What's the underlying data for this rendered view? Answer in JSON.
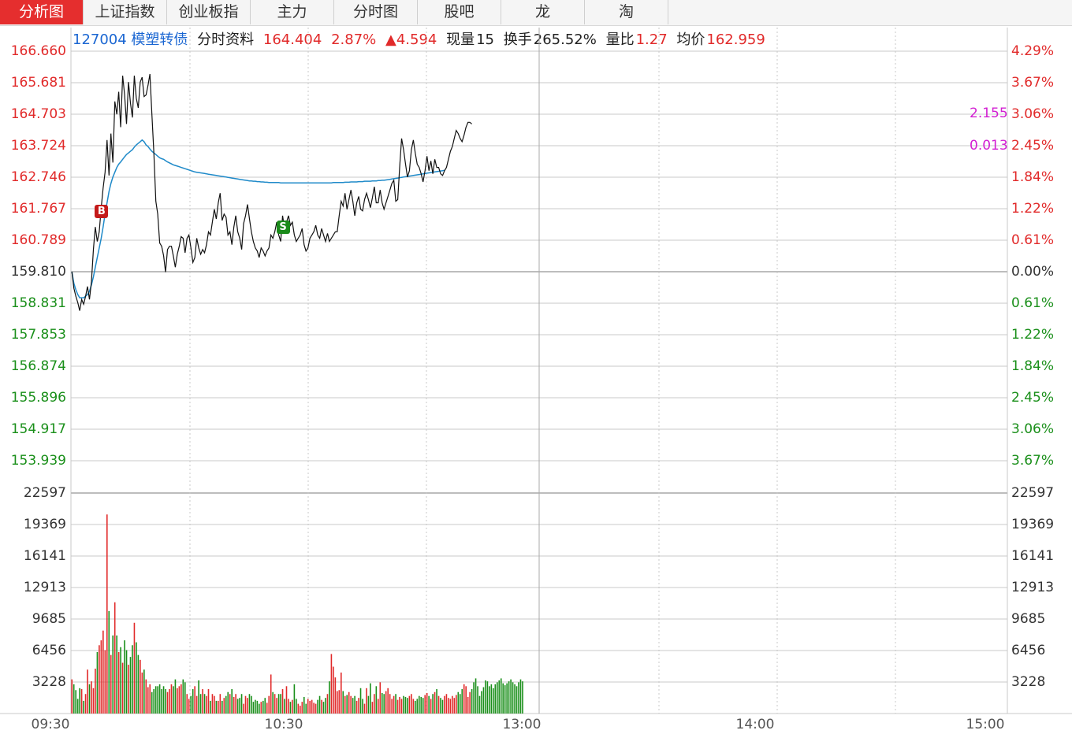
{
  "tabs": [
    {
      "label": "分析图",
      "active": true
    },
    {
      "label": "上证指数"
    },
    {
      "label": "创业板指"
    },
    {
      "label": "主力"
    },
    {
      "label": "分时图"
    },
    {
      "label": "股吧"
    },
    {
      "label": "龙"
    },
    {
      "label": "淘"
    }
  ],
  "info": {
    "code_name": "127004 模塑转债",
    "section": "分时资料",
    "price": "164.404",
    "change_pct": "2.87%",
    "change_amt": "▲4.594",
    "volume_label": "现量",
    "volume": "15",
    "turnover_label": "换手",
    "turnover": "265.52%",
    "ratio_label": "量比",
    "ratio": "1.27",
    "avg_label": "均价",
    "avg": "162.959"
  },
  "overlay_labels": [
    "2.155",
    "0.013"
  ],
  "colors": {
    "price_line": "#111111",
    "avg_line": "#1f8ac9",
    "up": "#e12a2a",
    "down": "#1a8f1a",
    "grid": "#c8c8c8",
    "base": "#bdbdbd",
    "overlay": "#d21fd2"
  },
  "chart_data": {
    "type": "line",
    "price_axis": {
      "labels": [
        "166.660",
        "165.681",
        "164.703",
        "163.724",
        "162.746",
        "161.767",
        "160.789",
        "159.810",
        "158.831",
        "157.853",
        "156.874",
        "155.896",
        "154.917",
        "153.939"
      ],
      "pct_labels": [
        "4.29%",
        "3.67%",
        "3.06%",
        "2.45%",
        "1.84%",
        "1.22%",
        "0.61%",
        "0.00%",
        "0.61%",
        "1.22%",
        "1.84%",
        "2.45%",
        "3.06%",
        "3.67%"
      ],
      "ylim": [
        153.939,
        166.66
      ],
      "prev_close": 159.81
    },
    "volume_axis": {
      "labels": [
        "22597",
        "19369",
        "16141",
        "12913",
        "9685",
        "6456",
        "3228"
      ],
      "ylim": [
        0,
        22597
      ]
    },
    "x_labels": [
      "09:30",
      "10:30",
      "13:00",
      "14:00",
      "15:00"
    ],
    "total_minutes": 240,
    "price": [
      159.81,
      159.3,
      159.05,
      158.85,
      158.6,
      158.95,
      158.8,
      159.05,
      159.35,
      158.95,
      159.5,
      160.5,
      161.2,
      160.75,
      161.05,
      161.8,
      162.4,
      162.9,
      163.9,
      162.8,
      164.1,
      163.2,
      165.1,
      164.7,
      165.4,
      164.3,
      165.9,
      165.3,
      164.4,
      165.7,
      165.05,
      164.6,
      165.9,
      165.2,
      164.9,
      165.7,
      165.85,
      165.25,
      165.3,
      165.6,
      165.95,
      164.7,
      163.5,
      162.0,
      161.6,
      160.7,
      160.6,
      160.3,
      159.8,
      160.5,
      160.6,
      160.6,
      160.3,
      159.95,
      160.35,
      160.6,
      160.9,
      160.85,
      160.4,
      160.85,
      160.95,
      160.55,
      160.1,
      160.25,
      160.85,
      160.55,
      160.35,
      160.5,
      160.4,
      160.65,
      161.05,
      160.95,
      161.35,
      161.75,
      161.45,
      161.95,
      162.25,
      161.4,
      161.6,
      161.5,
      160.95,
      161.05,
      160.65,
      161.2,
      161.55,
      161.05,
      160.85,
      160.5,
      161.3,
      161.55,
      161.9,
      161.45,
      161.05,
      160.75,
      160.55,
      160.45,
      160.25,
      160.55,
      160.45,
      160.3,
      160.45,
      160.55,
      160.95,
      160.85,
      161.05,
      161.35,
      160.95,
      160.75,
      161.55,
      161.15,
      161.35,
      161.55,
      161.25,
      161.35,
      160.95,
      160.75,
      160.85,
      160.95,
      161.15,
      160.65,
      160.45,
      160.55,
      160.85,
      160.95,
      161.05,
      161.25,
      160.95,
      160.85,
      161.15,
      160.95,
      160.75,
      161.0,
      160.75,
      160.85,
      160.95,
      161.05,
      161.05,
      161.55,
      162.0,
      161.85,
      162.25,
      161.75,
      162.05,
      162.35,
      162.0,
      161.55,
      161.95,
      162.15,
      161.75,
      161.7,
      162.05,
      162.25,
      162.05,
      161.8,
      162.1,
      162.45,
      161.95,
      161.95,
      162.35,
      161.95,
      161.75,
      161.95,
      162.15,
      162.35,
      162.55,
      162.65,
      162.0,
      162.05,
      163.05,
      163.95,
      163.6,
      163.15,
      162.75,
      162.95,
      163.6,
      163.9,
      163.5,
      163.15,
      163.05,
      162.85,
      162.6,
      162.95,
      163.4,
      162.95,
      163.25,
      162.85,
      163.3,
      163.05,
      163.05,
      162.85,
      162.8,
      162.95,
      163.05,
      163.3,
      163.55,
      163.7,
      163.95,
      164.2,
      164.1,
      163.95,
      163.85,
      164.05,
      164.3,
      164.45,
      164.45,
      164.4
    ],
    "avg": [
      159.81,
      159.45,
      159.25,
      159.1,
      159.0,
      159.0,
      159.0,
      159.05,
      159.1,
      159.2,
      159.4,
      159.65,
      159.95,
      160.25,
      160.55,
      160.85,
      161.2,
      161.6,
      161.95,
      162.3,
      162.55,
      162.75,
      162.9,
      163.05,
      163.15,
      163.22,
      163.3,
      163.38,
      163.45,
      163.5,
      163.55,
      163.6,
      163.68,
      163.75,
      163.8,
      163.85,
      163.9,
      163.85,
      163.75,
      163.7,
      163.62,
      163.55,
      163.5,
      163.45,
      163.4,
      163.35,
      163.32,
      163.3,
      163.26,
      163.22,
      163.19,
      163.16,
      163.13,
      163.11,
      163.09,
      163.07,
      163.05,
      163.03,
      163.01,
      162.99,
      162.97,
      162.95,
      162.93,
      162.91,
      162.9,
      162.89,
      162.88,
      162.87,
      162.86,
      162.85,
      162.84,
      162.83,
      162.82,
      162.81,
      162.8,
      162.79,
      162.78,
      162.77,
      162.76,
      162.75,
      162.74,
      162.73,
      162.72,
      162.71,
      162.7,
      162.69,
      162.68,
      162.67,
      162.66,
      162.65,
      162.64,
      162.63,
      162.63,
      162.62,
      162.62,
      162.61,
      162.61,
      162.6,
      162.6,
      162.59,
      162.59,
      162.58,
      162.58,
      162.58,
      162.58,
      162.58,
      162.58,
      162.57,
      162.57,
      162.57,
      162.57,
      162.57,
      162.57,
      162.57,
      162.57,
      162.57,
      162.57,
      162.57,
      162.57,
      162.57,
      162.57,
      162.57,
      162.57,
      162.57,
      162.57,
      162.57,
      162.57,
      162.57,
      162.57,
      162.57,
      162.57,
      162.57,
      162.57,
      162.57,
      162.58,
      162.58,
      162.58,
      162.58,
      162.58,
      162.58,
      162.59,
      162.59,
      162.59,
      162.6,
      162.6,
      162.6,
      162.6,
      162.61,
      162.61,
      162.61,
      162.62,
      162.62,
      162.62,
      162.62,
      162.63,
      162.63,
      162.63,
      162.64,
      162.64,
      162.65,
      162.65,
      162.66,
      162.67,
      162.68,
      162.69,
      162.7,
      162.71,
      162.72,
      162.73,
      162.74,
      162.75,
      162.76,
      162.77,
      162.78,
      162.79,
      162.8,
      162.81,
      162.82,
      162.83,
      162.84,
      162.85,
      162.86,
      162.87,
      162.88,
      162.89,
      162.9,
      162.91,
      162.92,
      162.93,
      162.94,
      162.95,
      162.96
    ],
    "volume": [
      3500,
      3000,
      2400,
      1500,
      2600,
      2500,
      1300,
      2000,
      4500,
      3000,
      3300,
      2600,
      4600,
      6300,
      7000,
      7500,
      8500,
      6500,
      20400,
      10500,
      6000,
      8000,
      11400,
      8000,
      6300,
      6800,
      5200,
      7500,
      6500,
      5000,
      5800,
      7000,
      9300,
      7300,
      6000,
      5500,
      4200,
      4500,
      3500,
      2700,
      3000,
      2200,
      2500,
      2800,
      2800,
      3000,
      2500,
      2800,
      2500,
      2200,
      2500,
      3000,
      2800,
      3500,
      2600,
      2800,
      3000,
      3500,
      3200,
      2000,
      1500,
      1800,
      2500,
      2800,
      1800,
      3400,
      2000,
      2500,
      2000,
      1800,
      2500,
      1300,
      2000,
      1800,
      1300,
      1300,
      2000,
      1300,
      1600,
      1800,
      2200,
      2000,
      2500,
      1700,
      2000,
      1500,
      1600,
      2000,
      1000,
      1800,
      1600,
      2000,
      1800,
      1200,
      1400,
      1300,
      1000,
      1200,
      1300,
      1600,
      1100,
      1800,
      4000,
      2200,
      2000,
      1600,
      2000,
      2000,
      2500,
      1500,
      2800,
      1500,
      1200,
      1400,
      3000,
      1500,
      1000,
      800,
      1200,
      1700,
      1000,
      1500,
      1300,
      1400,
      1100,
      1000,
      1400,
      1800,
      1400,
      1200,
      1600,
      2000,
      3300,
      6100,
      4800,
      3700,
      2300,
      2400,
      4200,
      2300,
      1800,
      1900,
      2200,
      1800,
      1600,
      1800,
      1300,
      1600,
      2600,
      1500,
      1000,
      2600,
      1800,
      3100,
      1200,
      2000,
      2800,
      1500,
      3200,
      2100,
      2000,
      2300,
      2600,
      2000,
      1500,
      1800,
      2000,
      1400,
      1700,
      1500,
      1800,
      1700,
      1600,
      1800,
      2000,
      1500,
      1300,
      1500,
      1800,
      1700,
      1600,
      1900,
      2100,
      1800,
      1500,
      2000,
      2200,
      2500,
      1800,
      1600,
      1400,
      1800,
      2000,
      1600,
      1500,
      1800,
      1600,
      1900,
      2200,
      2000,
      2500,
      3000,
      2800,
      1700,
      2200,
      2500,
      3200,
      3600,
      2800,
      1800,
      2300,
      2700,
      3400,
      3300,
      2800,
      3000,
      2600,
      3000,
      3200,
      3400,
      3600,
      3100,
      2900,
      3100,
      3300,
      3500,
      3200,
      3000,
      2800,
      3200,
      3500,
      3300
    ]
  },
  "markers": [
    {
      "label": "B",
      "minute": 15
    },
    {
      "label": "S",
      "minute": 108
    }
  ]
}
